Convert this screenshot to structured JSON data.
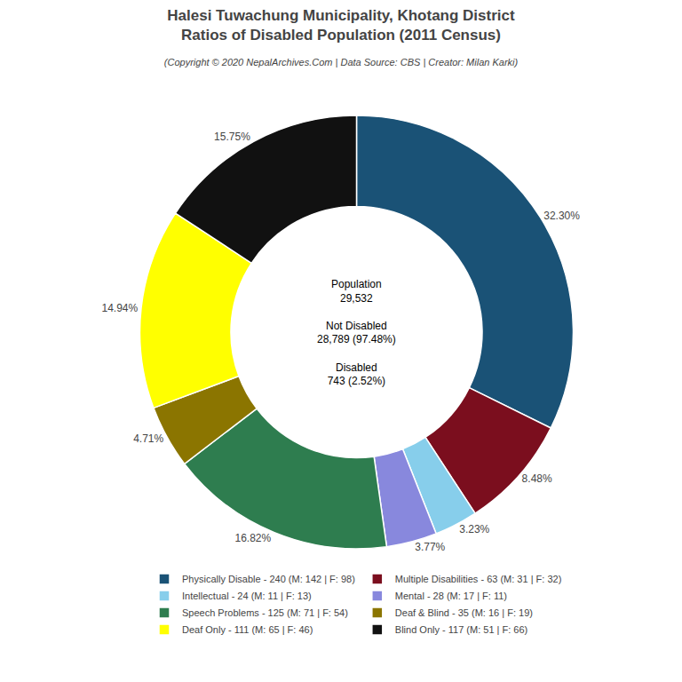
{
  "chart_data": {
    "type": "pie",
    "title": "Halesi Tuwachung Municipality, Khotang District\nRatios of Disabled Population (2011 Census)",
    "subtitle": "(Copyright © 2020 NepalArchives.Com | Data Source: CBS | Creator: Milan Karki)",
    "categories": [
      "Physically Disable - 240 (M: 142 | F: 98)",
      "Multiple Disabilities - 63 (M: 31 | F: 32)",
      "Intellectual - 24 (M: 11 | F: 13)",
      "Mental - 28 (M: 17 | F: 11)",
      "Speech Problems - 125 (M: 71 | F: 54)",
      "Deaf & Blind - 35 (M: 16 | F: 19)",
      "Deaf Only - 111 (M: 65 | F: 46)",
      "Blind Only - 117 (M: 51 | F: 66)"
    ],
    "values": [
      32.3,
      8.48,
      3.23,
      3.77,
      16.82,
      4.71,
      14.94,
      15.75
    ],
    "value_labels": [
      "32.30%",
      "8.48%",
      "3.23%",
      "3.77%",
      "16.82%",
      "4.71%",
      "14.94%",
      "15.75%"
    ],
    "colors": [
      "#1a5276",
      "#7b0e1e",
      "#87ceeb",
      "#8888dd",
      "#2e7d4f",
      "#8b7500",
      "#ffff00",
      "#111111"
    ],
    "data_labels": true,
    "legend": "bottom",
    "annotations": [
      "Population\n29,532",
      "Not Disabled\n28,789 (97.48%)",
      "Disabled\n743 (2.52%)"
    ]
  }
}
